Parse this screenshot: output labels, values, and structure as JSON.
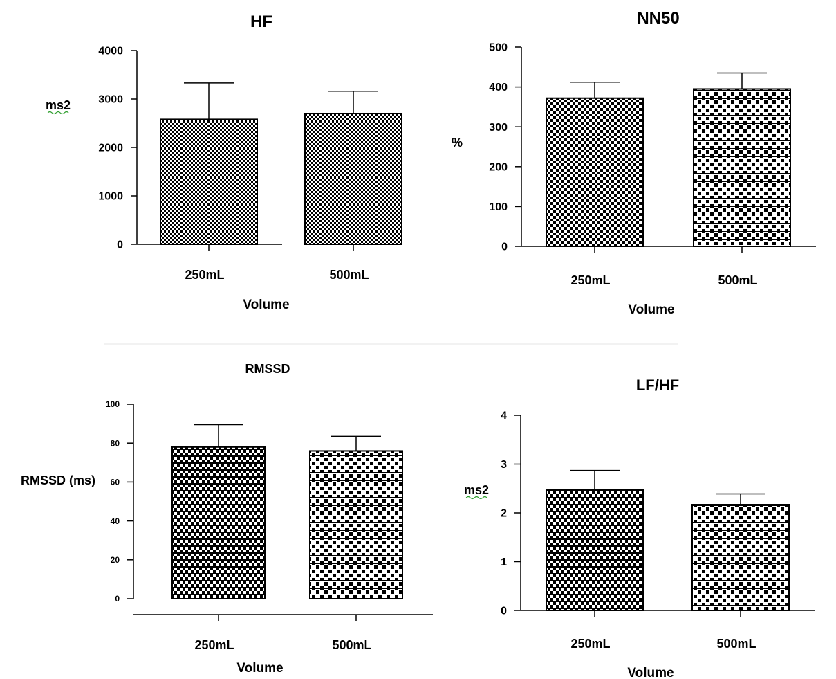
{
  "chart_data": [
    {
      "type": "bar",
      "title": "HF",
      "xlabel": "Volume",
      "ylabel": "ms2",
      "ylim": [
        0,
        4000
      ],
      "yticks": [
        0,
        1000,
        2000,
        3000,
        4000
      ],
      "categories": [
        "250mL",
        "500mL"
      ],
      "values": [
        2580,
        2700
      ],
      "error": [
        750,
        460
      ],
      "grid": false
    },
    {
      "type": "bar",
      "title": "NN50",
      "xlabel": "Volume",
      "ylabel": "%",
      "ylim": [
        0,
        500
      ],
      "yticks": [
        0,
        100,
        200,
        300,
        400,
        500
      ],
      "categories": [
        "250mL",
        "500mL"
      ],
      "values": [
        372,
        395
      ],
      "error": [
        40,
        40
      ],
      "grid": false
    },
    {
      "type": "bar",
      "title": "RMSSD",
      "xlabel": "Volume",
      "ylabel": "RMSSD (ms)",
      "ylim": [
        0,
        100
      ],
      "yticks": [
        0,
        20,
        40,
        60,
        80,
        100
      ],
      "categories": [
        "250mL",
        "500mL"
      ],
      "values": [
        78,
        76
      ],
      "error": [
        11.5,
        7.5
      ],
      "grid": false
    },
    {
      "type": "bar",
      "title": "LF/HF",
      "xlabel": "Volume",
      "ylabel": "ms2",
      "ylim": [
        0,
        4
      ],
      "yticks": [
        0,
        1,
        2,
        3,
        4
      ],
      "categories": [
        "250mL",
        "500mL"
      ],
      "values": [
        2.47,
        2.17
      ],
      "error": [
        0.4,
        0.22
      ],
      "grid": false
    }
  ]
}
